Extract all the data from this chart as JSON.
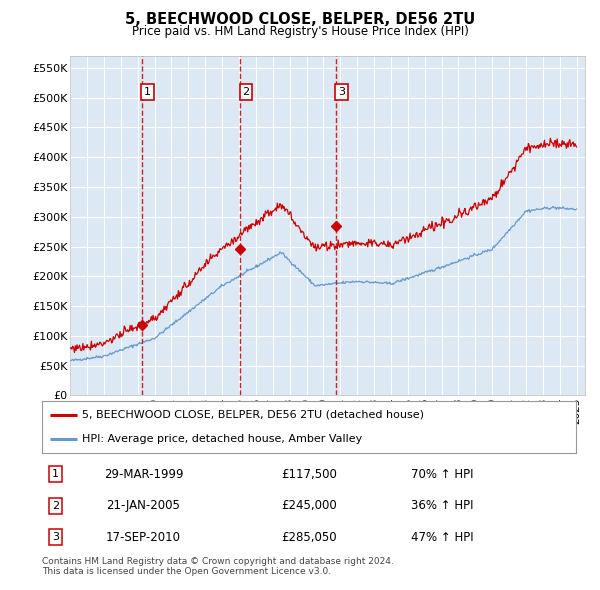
{
  "title": "5, BEECHWOOD CLOSE, BELPER, DE56 2TU",
  "subtitle": "Price paid vs. HM Land Registry's House Price Index (HPI)",
  "plot_bg_color": "#dce9f5",
  "red_color": "#cc0000",
  "blue_color": "#6699cc",
  "grid_color": "#ffffff",
  "ylim": [
    0,
    570000
  ],
  "yticks": [
    0,
    50000,
    100000,
    150000,
    200000,
    250000,
    300000,
    350000,
    400000,
    450000,
    500000,
    550000
  ],
  "ytick_labels": [
    "£0",
    "£50K",
    "£100K",
    "£150K",
    "£200K",
    "£250K",
    "£300K",
    "£350K",
    "£400K",
    "£450K",
    "£500K",
    "£550K"
  ],
  "xlim": [
    1995,
    2025.5
  ],
  "sale_dates": [
    1999.23,
    2005.06,
    2010.72
  ],
  "sale_prices": [
    117500,
    245000,
    285050
  ],
  "sale_labels": [
    "1",
    "2",
    "3"
  ],
  "footer_text": "Contains HM Land Registry data © Crown copyright and database right 2024.\nThis data is licensed under the Open Government Licence v3.0.",
  "legend_entries": [
    "5, BEECHWOOD CLOSE, BELPER, DE56 2TU (detached house)",
    "HPI: Average price, detached house, Amber Valley"
  ],
  "table_data": [
    [
      "1",
      "29-MAR-1999",
      "£117,500",
      "70% ↑ HPI"
    ],
    [
      "2",
      "21-JAN-2005",
      "£245,000",
      "36% ↑ HPI"
    ],
    [
      "3",
      "17-SEP-2010",
      "£285,050",
      "47% ↑ HPI"
    ]
  ]
}
